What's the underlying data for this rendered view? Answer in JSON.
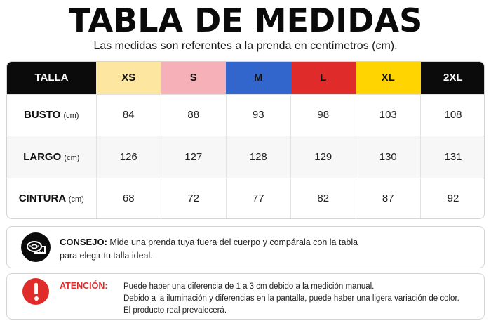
{
  "header": {
    "title": "TABLA DE MEDIDAS",
    "subtitle": "Las medidas son referentes a la prenda en centímetros (cm)."
  },
  "table": {
    "header_label": "TALLA",
    "sizes": [
      "XS",
      "S",
      "M",
      "L",
      "XL",
      "2XL"
    ],
    "size_colors": [
      "#fde7a0",
      "#f6b1b8",
      "#3366cc",
      "#e02b2b",
      "#ffd400",
      "#0b0b0b"
    ],
    "rows": [
      {
        "label": "BUSTO",
        "unit": "(cm)",
        "values": [
          "84",
          "88",
          "93",
          "98",
          "103",
          "108"
        ]
      },
      {
        "label": "LARGO",
        "unit": "(cm)",
        "values": [
          "126",
          "127",
          "128",
          "129",
          "130",
          "131"
        ]
      },
      {
        "label": "CINTURA",
        "unit": "(cm)",
        "values": [
          "68",
          "72",
          "77",
          "82",
          "87",
          "92"
        ]
      }
    ]
  },
  "tip": {
    "icon": "measuring-tape-icon",
    "lead": "CONSEJO:",
    "text_line1": "Mide una prenda tuya fuera del cuerpo y compárala con la tabla",
    "text_line2": "para elegir tu talla ideal."
  },
  "warning": {
    "icon": "exclamation-icon",
    "lead": "ATENCIÓN:",
    "lines": [
      "Puede haber una diferencia de 1 a 3 cm debido a la medición manual.",
      "Debido a la iluminación y diferencias en la pantalla, puede haber una ligera variación de color.",
      "El producto real prevalecerá."
    ]
  }
}
